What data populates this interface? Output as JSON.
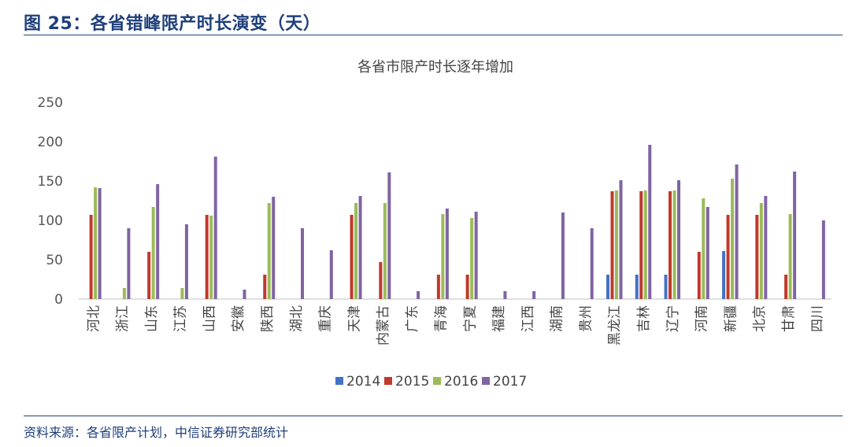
{
  "figure": {
    "title": "图 25：各省错峰限产时长演变（天）",
    "source": "资料来源：各省限产计划，中信证券研究部统计"
  },
  "chart_data": {
    "type": "bar",
    "title": "各省市限产时长逐年增加",
    "xlabel": "",
    "ylabel": "",
    "ylim": [
      0,
      250
    ],
    "yticks": [
      0,
      50,
      100,
      150,
      200,
      250
    ],
    "grid": false,
    "legend_position": "bottom",
    "categories": [
      "河北",
      "浙江",
      "山东",
      "江苏",
      "山西",
      "安徽",
      "陕西",
      "湖北",
      "重庆",
      "天津",
      "内蒙古",
      "广东",
      "青海",
      "宁夏",
      "福建",
      "江西",
      "湖南",
      "贵州",
      "黑龙江",
      "吉林",
      "辽宁",
      "河南",
      "新疆",
      "北京",
      "甘肃",
      "四川"
    ],
    "series": [
      {
        "name": "2014",
        "color": "#4472c4",
        "values": [
          0,
          0,
          0,
          0,
          0,
          0,
          0,
          0,
          0,
          0,
          0,
          0,
          0,
          0,
          0,
          0,
          0,
          0,
          31,
          31,
          31,
          0,
          61,
          0,
          0,
          0
        ]
      },
      {
        "name": "2015",
        "color": "#c0392b",
        "values": [
          107,
          0,
          60,
          0,
          107,
          0,
          31,
          0,
          0,
          107,
          47,
          0,
          31,
          31,
          0,
          0,
          0,
          0,
          137,
          137,
          137,
          60,
          107,
          107,
          31,
          0
        ]
      },
      {
        "name": "2016",
        "color": "#9bbb59",
        "values": [
          142,
          14,
          117,
          14,
          106,
          0,
          122,
          0,
          0,
          122,
          122,
          0,
          108,
          103,
          0,
          0,
          0,
          0,
          138,
          138,
          138,
          128,
          153,
          122,
          108,
          0
        ]
      },
      {
        "name": "2017",
        "color": "#8064a2",
        "values": [
          141,
          90,
          146,
          95,
          181,
          12,
          130,
          90,
          62,
          131,
          161,
          10,
          115,
          111,
          10,
          10,
          110,
          90,
          151,
          196,
          151,
          117,
          171,
          131,
          162,
          100
        ]
      }
    ]
  }
}
